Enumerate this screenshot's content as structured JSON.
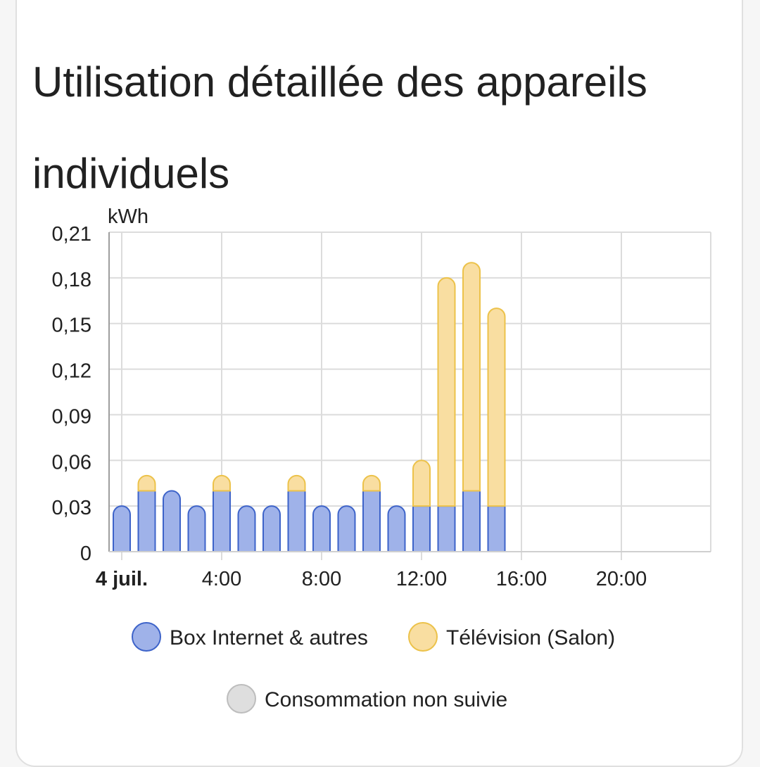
{
  "card": {
    "title": "Utilisation détaillée des appareils individuels"
  },
  "colors": {
    "series_box_fill": "#9fb2e9",
    "series_box_stroke": "#3d63c9",
    "series_tv_fill": "#f9dea1",
    "series_tv_stroke": "#ecc24a",
    "untracked_fill": "#dedede",
    "untracked_stroke": "#bdbdbd",
    "grid": "#dcdcdc",
    "axis_text": "#212121"
  },
  "chart_data": {
    "type": "bar",
    "stacked": true,
    "y_unit": "kWh",
    "ylim": [
      0,
      0.21
    ],
    "y_ticks": [
      "0",
      "0,03",
      "0,06",
      "0,09",
      "0,12",
      "0,15",
      "0,18",
      "0,21"
    ],
    "y_tick_values": [
      0,
      0.03,
      0.06,
      0.09,
      0.12,
      0.15,
      0.18,
      0.21
    ],
    "x_ticks": [
      "4 juil.",
      "4:00",
      "8:00",
      "12:00",
      "16:00",
      "20:00"
    ],
    "x_tick_hours": [
      0,
      4,
      8,
      12,
      16,
      20
    ],
    "x_hours_total": 24,
    "x": [
      0,
      1,
      2,
      3,
      4,
      5,
      6,
      7,
      8,
      9,
      10,
      11,
      12,
      13,
      14,
      15
    ],
    "grid": true,
    "legend_position": "bottom",
    "series": [
      {
        "name": "Box Internet & autres",
        "values": [
          0.03,
          0.04,
          0.04,
          0.03,
          0.04,
          0.03,
          0.03,
          0.04,
          0.03,
          0.03,
          0.04,
          0.03,
          0.03,
          0.03,
          0.04,
          0.03
        ]
      },
      {
        "name": "Télévision (Salon)",
        "values": [
          0,
          0.01,
          0,
          0,
          0.01,
          0,
          0,
          0.01,
          0,
          0,
          0.01,
          0,
          0.03,
          0.15,
          0.15,
          0.13
        ]
      },
      {
        "name": "Consommation non suivie",
        "values": [
          0,
          0,
          0,
          0,
          0,
          0,
          0,
          0,
          0,
          0,
          0,
          0,
          0,
          0,
          0,
          0
        ]
      }
    ]
  }
}
